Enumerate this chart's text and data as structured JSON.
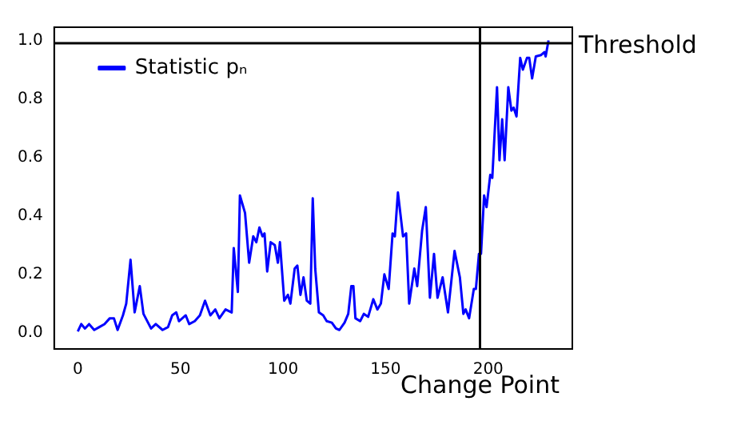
{
  "chart_data": {
    "type": "line",
    "x": [
      0,
      1.7,
      3.5,
      5.5,
      8,
      10.5,
      13,
      15.6,
      17.6,
      19.4,
      22,
      23.6,
      25.7,
      27.7,
      30.2,
      32,
      35.7,
      38,
      41.3,
      44,
      46,
      48,
      49.3,
      52.6,
      54.3,
      57,
      59.5,
      62,
      64.6,
      67,
      69,
      72,
      75,
      76,
      78,
      79,
      81.5,
      83.5,
      85.5,
      87,
      88.5,
      90,
      91,
      92.3,
      94,
      96,
      97.5,
      98.5,
      100.6,
      102.4,
      103.6,
      105.7,
      107,
      108.5,
      110,
      111.6,
      113.3,
      114.5,
      115.7,
      117.5,
      119.6,
      121.3,
      123.8,
      125.8,
      127.5,
      130,
      131.8,
      133.3,
      134.3,
      135.3,
      137.6,
      139.4,
      141.5,
      144,
      146,
      147.7,
      149.4,
      151.5,
      153.4,
      154.5,
      156,
      158.5,
      160,
      161.5,
      164,
      165.4,
      167.8,
      169.6,
      171.6,
      173.6,
      175.3,
      177.8,
      180.4,
      183.6,
      186.2,
      187.9,
      189,
      190.7,
      193,
      194,
      195.5,
      196.5,
      198,
      199.2,
      201,
      202,
      204.3,
      205.5,
      206.8,
      208,
      209.8,
      211.3,
      212.4,
      213.8,
      215.6,
      216.9,
      218.9,
      220,
      221.4,
      223.2,
      225.8,
      227.4,
      228,
      229.4
    ],
    "series": [
      {
        "name": "Statistic pₙ",
        "color": "#0000ff",
        "values": [
          0.005,
          0.03,
          0.015,
          0.03,
          0.01,
          0.02,
          0.03,
          0.05,
          0.05,
          0.01,
          0.06,
          0.1,
          0.25,
          0.07,
          0.16,
          0.065,
          0.015,
          0.03,
          0.01,
          0.02,
          0.06,
          0.07,
          0.04,
          0.06,
          0.03,
          0.04,
          0.06,
          0.11,
          0.06,
          0.08,
          0.05,
          0.08,
          0.07,
          0.29,
          0.14,
          0.47,
          0.41,
          0.24,
          0.33,
          0.31,
          0.36,
          0.33,
          0.34,
          0.21,
          0.31,
          0.3,
          0.24,
          0.31,
          0.11,
          0.13,
          0.1,
          0.22,
          0.23,
          0.13,
          0.19,
          0.11,
          0.1,
          0.46,
          0.22,
          0.07,
          0.06,
          0.04,
          0.035,
          0.015,
          0.01,
          0.035,
          0.065,
          0.16,
          0.16,
          0.05,
          0.04,
          0.065,
          0.055,
          0.115,
          0.08,
          0.1,
          0.2,
          0.15,
          0.34,
          0.33,
          0.48,
          0.33,
          0.34,
          0.1,
          0.22,
          0.16,
          0.35,
          0.43,
          0.12,
          0.27,
          0.12,
          0.19,
          0.07,
          0.28,
          0.19,
          0.065,
          0.08,
          0.05,
          0.15,
          0.15,
          0.27,
          0.27,
          0.47,
          0.43,
          0.54,
          0.53,
          0.84,
          0.59,
          0.73,
          0.59,
          0.84,
          0.76,
          0.77,
          0.74,
          0.94,
          0.9,
          0.94,
          0.94,
          0.87,
          0.945,
          0.95,
          0.96,
          0.945,
          1.0
        ]
      }
    ],
    "xlim": [
      -11.5,
      241
    ],
    "ylim": [
      -0.055,
      1.045
    ],
    "xticks": [
      0,
      50,
      100,
      150,
      200
    ],
    "yticks": [
      {
        "value": 0,
        "label": "0.0"
      },
      {
        "value": 0.2,
        "label": "0.2"
      },
      {
        "value": 0.4,
        "label": "0.4"
      },
      {
        "value": 0.6,
        "label": "0.6"
      },
      {
        "value": 0.8,
        "label": "0.8"
      },
      {
        "value": 1,
        "label": "1.0"
      }
    ],
    "ref_lines": [
      {
        "axis": "y",
        "value": 0.99,
        "label": "Threshold",
        "color": "#000000"
      },
      {
        "axis": "x",
        "value": 196,
        "label": "Change Point",
        "color": "#000000"
      }
    ],
    "legend": "top left",
    "grid": false,
    "marker": "none",
    "line_style": "solid"
  }
}
